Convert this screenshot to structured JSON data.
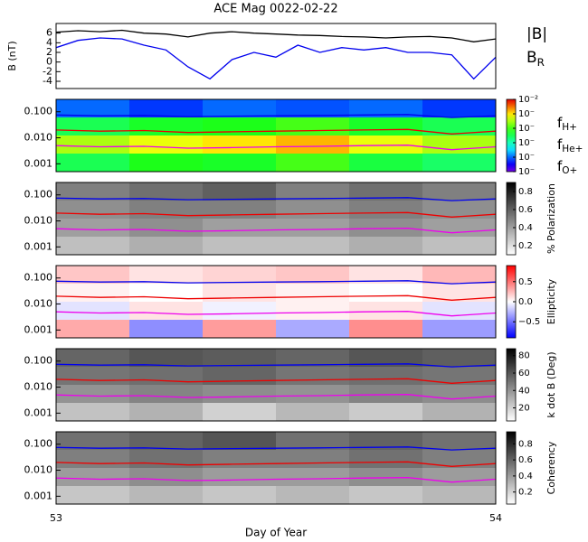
{
  "title": "ACE Mag 0022-02-22",
  "xlabel": "Day of Year",
  "xlim": [
    53,
    54
  ],
  "xticks": [
    53,
    54
  ],
  "chart_data": [
    {
      "type": "line",
      "ylabel": "B (nT)",
      "ylim": [
        -5.5,
        8
      ],
      "yticks": [
        -4,
        -2,
        0,
        2,
        4,
        6
      ],
      "x": [
        53,
        53.05,
        53.1,
        53.15,
        53.2,
        53.25,
        53.3,
        53.35,
        53.4,
        53.45,
        53.5,
        53.55,
        53.6,
        53.65,
        53.7,
        53.75,
        53.8,
        53.85,
        53.9,
        53.95,
        54
      ],
      "series": [
        {
          "name": "|B|",
          "color": "#000000",
          "values": [
            6.2,
            6.5,
            6.3,
            6.6,
            6.0,
            5.8,
            5.2,
            6.0,
            6.3,
            6.0,
            5.8,
            5.6,
            5.5,
            5.3,
            5.2,
            5.0,
            5.2,
            5.3,
            5.0,
            4.2,
            4.8
          ]
        },
        {
          "name": "B_R",
          "color": "#0000ee",
          "values": [
            3.0,
            4.5,
            5.0,
            4.8,
            3.5,
            2.5,
            -1.0,
            -3.5,
            0.5,
            2.0,
            1.0,
            3.5,
            2.0,
            3.0,
            2.5,
            3.0,
            2.0,
            2.0,
            1.5,
            -3.5,
            1.0
          ]
        }
      ]
    },
    {
      "type": "spectrogram",
      "log_y": true,
      "ylim": [
        0.0005,
        0.3
      ],
      "yticks": [
        {
          "value": 0.1,
          "label": "0.100"
        },
        {
          "value": 0.01,
          "label": "0.010"
        },
        0.001
      ],
      "colormap": "rainbow",
      "zlim": [
        -7,
        -2
      ],
      "zticks": [
        {
          "value": -2,
          "label": "10⁻²"
        },
        {
          "value": -3,
          "label": "10⁻"
        },
        {
          "value": -4,
          "label": "10⁻"
        },
        {
          "value": -5,
          "label": "10⁻"
        },
        {
          "value": -6,
          "label": "10⁻"
        },
        {
          "value": -7,
          "label": "10⁻"
        }
      ],
      "z": [
        [
          -6,
          -6.2,
          -6,
          -6.1,
          -6,
          -6.2
        ],
        [
          -4.5,
          -4.3,
          -4.2,
          -4.0,
          -4.3,
          -4.5
        ],
        [
          -3.5,
          -3.2,
          -3.0,
          -2.8,
          -3.2,
          -3.5
        ],
        [
          -4.5,
          -4.2,
          -4.3,
          -4.0,
          -4.4,
          -4.6
        ]
      ],
      "x": [
        53,
        53.1,
        53.2,
        53.3,
        53.4,
        53.5,
        53.6,
        53.7,
        53.8,
        53.9,
        54
      ],
      "series": [
        {
          "name": "f_H+",
          "color": "#0000ee",
          "values": [
            0.075,
            0.07,
            0.072,
            0.065,
            0.068,
            0.07,
            0.072,
            0.075,
            0.078,
            0.06,
            0.07
          ]
        },
        {
          "name": "f_He+",
          "color": "#ee0000",
          "values": [
            0.02,
            0.018,
            0.019,
            0.016,
            0.017,
            0.018,
            0.019,
            0.02,
            0.021,
            0.014,
            0.018
          ]
        },
        {
          "name": "f_O+",
          "color": "#ee00ee",
          "values": [
            0.005,
            0.0045,
            0.0047,
            0.004,
            0.0042,
            0.0045,
            0.0047,
            0.005,
            0.0052,
            0.0035,
            0.0045
          ]
        }
      ]
    },
    {
      "type": "spectrogram",
      "log_y": true,
      "ylim": [
        0.0005,
        0.3
      ],
      "yticks": [
        {
          "value": 0.1,
          "label": "0.100"
        },
        {
          "value": 0.01,
          "label": "0.010"
        },
        0.001
      ],
      "colormap": "gray_r",
      "zlim": [
        0.1,
        0.9
      ],
      "zticks": [
        0.2,
        0.4,
        0.6,
        0.8
      ],
      "zlabel": "% Polarization",
      "z": [
        [
          0.5,
          0.55,
          0.6,
          0.5,
          0.55,
          0.5
        ],
        [
          0.45,
          0.5,
          0.5,
          0.45,
          0.5,
          0.45
        ],
        [
          0.4,
          0.45,
          0.4,
          0.4,
          0.45,
          0.4
        ],
        [
          0.3,
          0.35,
          0.3,
          0.3,
          0.35,
          0.3
        ]
      ],
      "x": [
        53,
        53.1,
        53.2,
        53.3,
        53.4,
        53.5,
        53.6,
        53.7,
        53.8,
        53.9,
        54
      ],
      "series": [
        {
          "name": "f_H+",
          "color": "#0000ee",
          "values": [
            0.075,
            0.07,
            0.072,
            0.065,
            0.068,
            0.07,
            0.072,
            0.075,
            0.078,
            0.06,
            0.07
          ]
        },
        {
          "name": "f_He+",
          "color": "#ee0000",
          "values": [
            0.02,
            0.018,
            0.019,
            0.016,
            0.017,
            0.018,
            0.019,
            0.02,
            0.021,
            0.014,
            0.018
          ]
        },
        {
          "name": "f_O+",
          "color": "#ee00ee",
          "values": [
            0.005,
            0.0045,
            0.0047,
            0.004,
            0.0042,
            0.0045,
            0.0047,
            0.005,
            0.0052,
            0.0035,
            0.0045
          ]
        }
      ]
    },
    {
      "type": "spectrogram",
      "log_y": true,
      "ylim": [
        0.0005,
        0.3
      ],
      "yticks": [
        {
          "value": 0.1,
          "label": "0.100"
        },
        {
          "value": 0.01,
          "label": "0.010"
        },
        0.001
      ],
      "colormap": "bwr",
      "zlim": [
        -0.9,
        0.9
      ],
      "zticks": [
        {
          "value": -0.5,
          "label": "−0.5"
        },
        {
          "value": 0,
          "label": "0.0"
        },
        0.5
      ],
      "zlabel": "Ellipticity",
      "z": [
        [
          0.2,
          0.1,
          0.15,
          0.2,
          0.1,
          0.25
        ],
        [
          0.05,
          0.0,
          0.1,
          0.05,
          0.0,
          0.1
        ],
        [
          -0.1,
          0.1,
          -0.05,
          0.05,
          0.1,
          -0.1
        ],
        [
          0.3,
          -0.4,
          0.35,
          -0.3,
          0.4,
          -0.35
        ]
      ],
      "x": [
        53,
        53.1,
        53.2,
        53.3,
        53.4,
        53.5,
        53.6,
        53.7,
        53.8,
        53.9,
        54
      ],
      "series": [
        {
          "name": "f_H+",
          "color": "#0000ee",
          "values": [
            0.075,
            0.07,
            0.072,
            0.065,
            0.068,
            0.07,
            0.072,
            0.075,
            0.078,
            0.06,
            0.07
          ]
        },
        {
          "name": "f_He+",
          "color": "#ee0000",
          "values": [
            0.02,
            0.018,
            0.019,
            0.016,
            0.017,
            0.018,
            0.019,
            0.02,
            0.021,
            0.014,
            0.018
          ]
        },
        {
          "name": "f_O+",
          "color": "#ee00ee",
          "values": [
            0.005,
            0.0045,
            0.0047,
            0.004,
            0.0042,
            0.0045,
            0.0047,
            0.005,
            0.0052,
            0.0035,
            0.0045
          ]
        }
      ]
    },
    {
      "type": "spectrogram",
      "log_y": true,
      "ylim": [
        0.0005,
        0.3
      ],
      "yticks": [
        {
          "value": 0.1,
          "label": "0.100"
        },
        {
          "value": 0.01,
          "label": "0.010"
        },
        0.001
      ],
      "colormap": "gray_r",
      "zlim": [
        5,
        88
      ],
      "zticks": [
        20,
        40,
        60,
        80
      ],
      "zlabel": "k dot B (Deg)",
      "z": [
        [
          55,
          60,
          58,
          55,
          60,
          57
        ],
        [
          50,
          52,
          55,
          50,
          52,
          50
        ],
        [
          40,
          45,
          42,
          40,
          45,
          42
        ],
        [
          25,
          30,
          20,
          28,
          22,
          30
        ]
      ],
      "x": [
        53,
        53.1,
        53.2,
        53.3,
        53.4,
        53.5,
        53.6,
        53.7,
        53.8,
        53.9,
        54
      ],
      "series": [
        {
          "name": "f_H+",
          "color": "#0000ee",
          "values": [
            0.075,
            0.07,
            0.072,
            0.065,
            0.068,
            0.07,
            0.072,
            0.075,
            0.078,
            0.06,
            0.07
          ]
        },
        {
          "name": "f_He+",
          "color": "#ee0000",
          "values": [
            0.02,
            0.018,
            0.019,
            0.016,
            0.017,
            0.018,
            0.019,
            0.02,
            0.021,
            0.014,
            0.018
          ]
        },
        {
          "name": "f_O+",
          "color": "#ee00ee",
          "values": [
            0.005,
            0.0045,
            0.0047,
            0.004,
            0.0042,
            0.0045,
            0.0047,
            0.005,
            0.0052,
            0.0035,
            0.0045
          ]
        }
      ]
    },
    {
      "type": "spectrogram",
      "log_y": true,
      "ylim": [
        0.0005,
        0.3
      ],
      "yticks": [
        {
          "value": 0.1,
          "label": "0.100"
        },
        {
          "value": 0.01,
          "label": "0.010"
        },
        0.001
      ],
      "colormap": "gray_r",
      "zlim": [
        0.05,
        0.95
      ],
      "zticks": [
        0.2,
        0.4,
        0.6,
        0.8
      ],
      "zlabel": "Coherency",
      "z": [
        [
          0.55,
          0.6,
          0.65,
          0.55,
          0.6,
          0.55
        ],
        [
          0.5,
          0.55,
          0.5,
          0.5,
          0.55,
          0.5
        ],
        [
          0.4,
          0.45,
          0.4,
          0.4,
          0.45,
          0.4
        ],
        [
          0.25,
          0.3,
          0.25,
          0.3,
          0.25,
          0.3
        ]
      ],
      "x": [
        53,
        53.1,
        53.2,
        53.3,
        53.4,
        53.5,
        53.6,
        53.7,
        53.8,
        53.9,
        54
      ],
      "series": [
        {
          "name": "f_H+",
          "color": "#0000ee",
          "values": [
            0.075,
            0.07,
            0.072,
            0.065,
            0.068,
            0.07,
            0.072,
            0.075,
            0.078,
            0.06,
            0.07
          ]
        },
        {
          "name": "f_He+",
          "color": "#ee0000",
          "values": [
            0.02,
            0.018,
            0.019,
            0.016,
            0.017,
            0.018,
            0.019,
            0.02,
            0.021,
            0.014,
            0.018
          ]
        },
        {
          "name": "f_O+",
          "color": "#ee00ee",
          "values": [
            0.005,
            0.0045,
            0.0047,
            0.004,
            0.0042,
            0.0045,
            0.0047,
            0.005,
            0.0052,
            0.0035,
            0.0045
          ]
        }
      ]
    }
  ]
}
